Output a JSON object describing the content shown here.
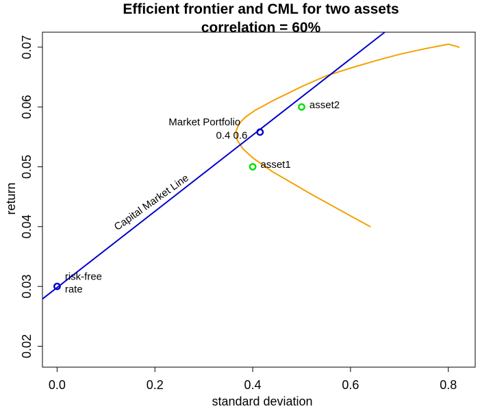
{
  "chart_data": {
    "type": "line",
    "title": "Efficient frontier and CML for two assets",
    "subtitle": "correlation = 60%",
    "xlabel": "standard deviation",
    "ylabel": "return",
    "xlim": [
      -0.03,
      0.855
    ],
    "ylim": [
      0.0165,
      0.0725
    ],
    "x_ticks": [
      0.0,
      0.2,
      0.4,
      0.6,
      0.8
    ],
    "x_tick_labels": [
      "0.0",
      "0.2",
      "0.4",
      "0.6",
      "0.8"
    ],
    "y_ticks": [
      0.02,
      0.03,
      0.04,
      0.05,
      0.06,
      0.07
    ],
    "y_tick_labels": [
      "0.02",
      "0.03",
      "0.04",
      "0.05",
      "0.06",
      "0.07"
    ],
    "grid": false,
    "series": [
      {
        "kind": "frontier",
        "color": "#f5a000",
        "x": [
          0.64,
          0.6,
          0.56,
          0.52,
          0.48,
          0.44,
          0.4,
          0.38,
          0.368,
          0.366,
          0.372,
          0.385,
          0.404,
          0.418,
          0.44,
          0.47,
          0.5,
          0.55,
          0.6,
          0.65,
          0.7,
          0.75,
          0.8,
          0.822
        ],
        "y": [
          0.04,
          0.0418,
          0.0436,
          0.0454,
          0.0473,
          0.0492,
          0.0515,
          0.053,
          0.0545,
          0.056,
          0.0572,
          0.0583,
          0.0594,
          0.06,
          0.061,
          0.0622,
          0.0634,
          0.0652,
          0.0665,
          0.0677,
          0.0688,
          0.0697,
          0.0705,
          0.07
        ]
      },
      {
        "kind": "capital-market-line",
        "color": "#0000cc",
        "x": [
          -0.03,
          0.67
        ],
        "y": [
          0.0279,
          0.0725
        ]
      }
    ],
    "points": [
      {
        "id": "risk-free",
        "x": 0.0,
        "y": 0.03,
        "color": "#0000cc"
      },
      {
        "id": "market",
        "x": 0.415,
        "y": 0.0558,
        "color": "#0000cc"
      },
      {
        "id": "asset1",
        "x": 0.4,
        "y": 0.05,
        "color": "#00e000"
      },
      {
        "id": "asset2",
        "x": 0.5,
        "y": 0.06,
        "color": "#00e000"
      }
    ],
    "annotations": [
      {
        "id": "risk-free-label-1",
        "text": "risk-free",
        "x": 0.016,
        "y": 0.0311
      },
      {
        "id": "risk-free-label-2",
        "text": "rate",
        "x": 0.016,
        "y": 0.029
      },
      {
        "id": "market-label-1",
        "text": "Market Portfolio",
        "x": 0.228,
        "y": 0.0569
      },
      {
        "id": "market-label-2",
        "text": "0.4 0.6",
        "x": 0.325,
        "y": 0.0547
      },
      {
        "id": "asset1-label",
        "text": "asset1",
        "x": 0.416,
        "y": 0.0498
      },
      {
        "id": "asset2-label",
        "text": "asset2",
        "x": 0.516,
        "y": 0.0598
      },
      {
        "id": "cml-label",
        "text": "Capital Market Line",
        "x": 0.123,
        "y": 0.0393,
        "angle": -35.5
      }
    ]
  }
}
